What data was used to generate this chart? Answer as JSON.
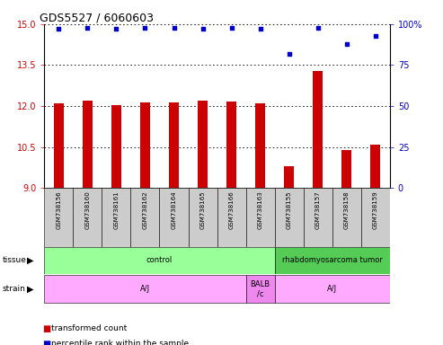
{
  "title": "GDS5527 / 6060603",
  "samples": [
    "GSM738156",
    "GSM738160",
    "GSM738161",
    "GSM738162",
    "GSM738164",
    "GSM738165",
    "GSM738166",
    "GSM738163",
    "GSM738155",
    "GSM738157",
    "GSM738158",
    "GSM738159"
  ],
  "bar_values": [
    12.1,
    12.2,
    12.05,
    12.15,
    12.15,
    12.2,
    12.18,
    12.1,
    9.8,
    13.3,
    10.4,
    10.6
  ],
  "dot_values": [
    97,
    98,
    97,
    98,
    98,
    97,
    98,
    97,
    82,
    98,
    88,
    93
  ],
  "ylim_left": [
    9,
    15
  ],
  "ylim_right": [
    0,
    100
  ],
  "yticks_left": [
    9,
    10.5,
    12,
    13.5,
    15
  ],
  "yticks_right": [
    0,
    25,
    50,
    75,
    100
  ],
  "bar_color": "#cc0000",
  "dot_color": "#0000cc",
  "tissue_labels": [
    {
      "label": "control",
      "start": 0,
      "end": 7,
      "color": "#99ff99"
    },
    {
      "label": "rhabdomyosarcoma tumor",
      "start": 8,
      "end": 11,
      "color": "#55cc55"
    }
  ],
  "strain_labels": [
    {
      "label": "A/J",
      "start": 0,
      "end": 6,
      "color": "#ffaaff"
    },
    {
      "label": "BALB\n/c",
      "start": 7,
      "end": 7,
      "color": "#ee88ee"
    },
    {
      "label": "A/J",
      "start": 8,
      "end": 11,
      "color": "#ffaaff"
    }
  ],
  "legend_items": [
    {
      "color": "#cc0000",
      "label": "transformed count"
    },
    {
      "color": "#0000cc",
      "label": "percentile rank within the sample"
    }
  ],
  "tick_label_color_left": "#cc0000",
  "tick_label_color_right": "#0000cc",
  "sample_box_color": "#cccccc"
}
